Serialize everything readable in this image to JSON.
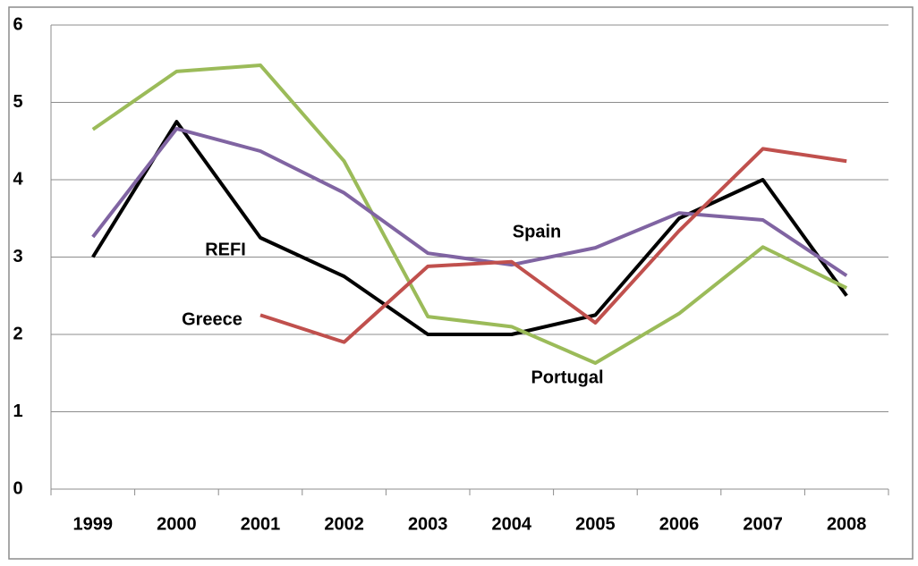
{
  "chart_data": {
    "type": "line",
    "categories": [
      "1999",
      "2000",
      "2001",
      "2002",
      "2003",
      "2004",
      "2005",
      "2006",
      "2007",
      "2008"
    ],
    "series": [
      {
        "name": "REFI",
        "color": "#000000",
        "values": [
          3.0,
          4.75,
          3.25,
          2.75,
          2.0,
          2.0,
          2.25,
          3.5,
          4.0,
          2.5
        ]
      },
      {
        "name": "Portugal",
        "color": "#9bbb59",
        "values": [
          4.65,
          5.4,
          5.48,
          4.24,
          2.23,
          2.1,
          1.63,
          2.27,
          3.13,
          2.6
        ]
      },
      {
        "name": "Spain",
        "color": "#8064a2",
        "values": [
          3.26,
          4.66,
          4.37,
          3.83,
          3.05,
          2.9,
          3.12,
          3.57,
          3.48,
          2.76
        ]
      },
      {
        "name": "Greece",
        "color": "#c0504d",
        "values": [
          null,
          null,
          2.25,
          1.9,
          2.88,
          2.94,
          2.15,
          3.34,
          4.4,
          4.24
        ]
      }
    ],
    "ylim": [
      0,
      6
    ],
    "yticks": [
      0,
      1,
      2,
      3,
      4,
      5,
      6
    ],
    "grid": true
  }
}
